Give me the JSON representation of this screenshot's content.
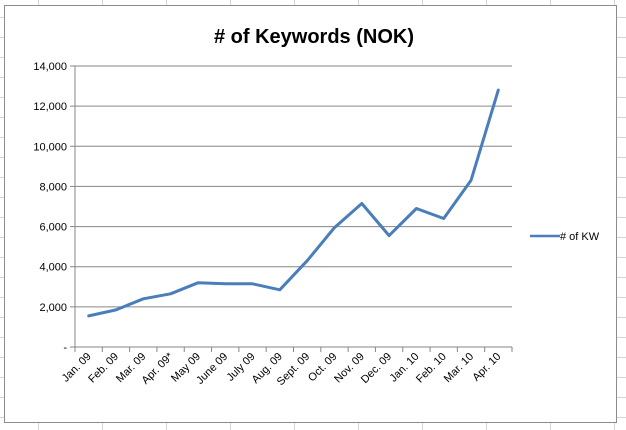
{
  "chart_data": {
    "type": "line",
    "title": "# of Keywords (NOK)",
    "categories": [
      "Jan. 09",
      "Feb. 09",
      "Mar. 09",
      "Apr. 09*",
      "May 09",
      "June 09",
      "July 09",
      "Aug. 09",
      "Sept. 09",
      "Oct. 09",
      "Nov. 09",
      "Dec. 09",
      "Jan. 10",
      "Feb. 10",
      "Mar. 10",
      "Apr. 10"
    ],
    "series": [
      {
        "name": "# of KW",
        "values": [
          1550,
          1850,
          2400,
          2650,
          3200,
          3150,
          3150,
          2850,
          4300,
          5950,
          7150,
          5550,
          6900,
          6400,
          8300,
          12800
        ],
        "color": "#4a7ebb"
      }
    ],
    "ylim": [
      0,
      14000
    ],
    "yticks": [
      0,
      2000,
      4000,
      6000,
      8000,
      10000,
      12000,
      14000
    ],
    "ytick_labels": [
      "-",
      "2,000",
      "4,000",
      "6,000",
      "8,000",
      "10,000",
      "12,000",
      "14,000"
    ],
    "grid": true,
    "legend_position": "right"
  }
}
